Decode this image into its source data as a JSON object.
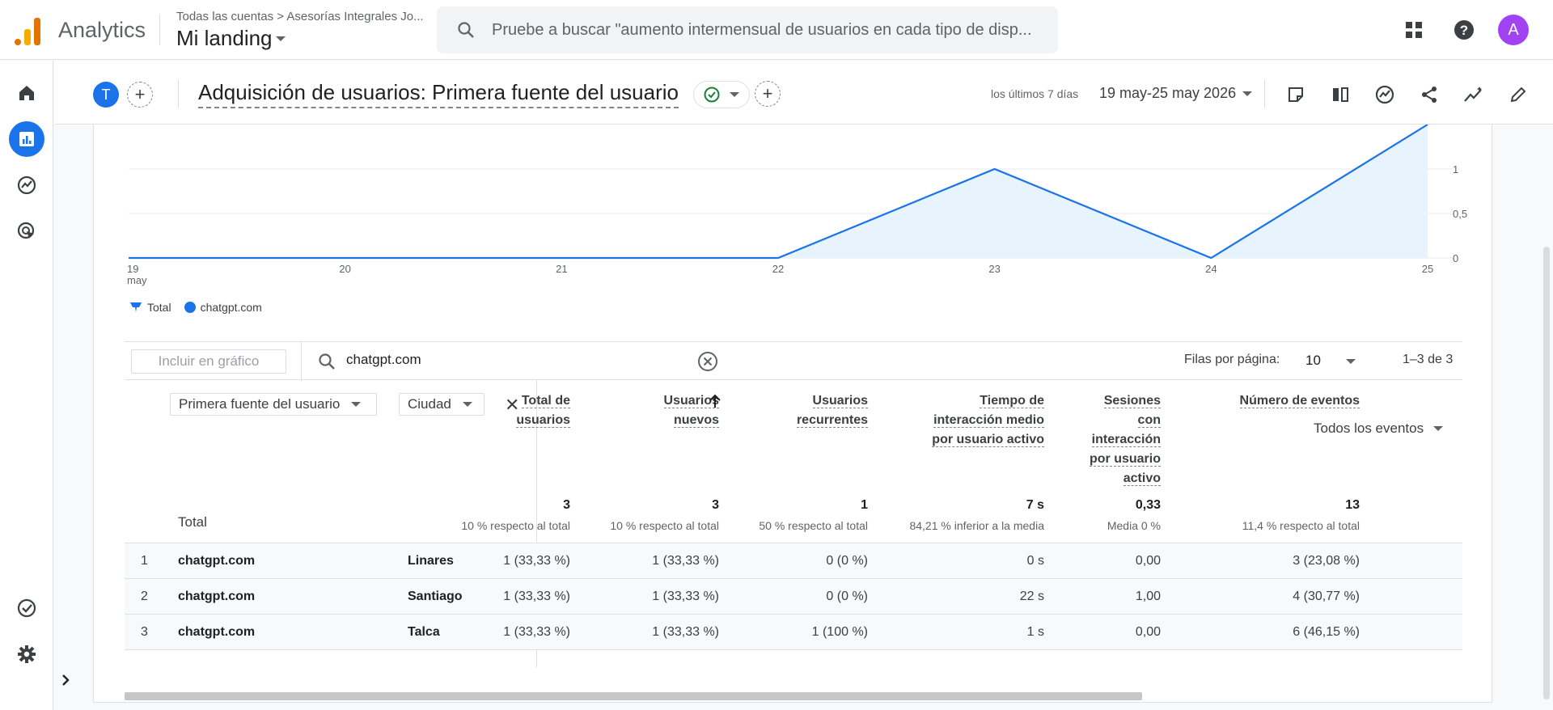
{
  "app": {
    "name": "Analytics",
    "account_path": "Todas las cuentas > Asesorías Integrales Jo...",
    "property": "Mi landing",
    "search_placeholder": "Pruebe a buscar \"aumento intermensual de usuarios en cada tipo de disp...",
    "avatar_letter": "A"
  },
  "header": {
    "segment_letter": "T",
    "title": "Adquisición de usuarios: Primera fuente del usuario",
    "date_label": "los últimos 7 días",
    "date_range": "19 may-25 may 2026"
  },
  "chart_data": {
    "type": "area",
    "x": [
      "19 may",
      "20",
      "21",
      "22",
      "23",
      "24",
      "25"
    ],
    "series": [
      {
        "name": "chatgpt.com",
        "values": [
          0,
          0,
          0,
          0,
          1,
          0,
          1.5
        ]
      }
    ],
    "yticks": [
      "0",
      "0,5",
      "1"
    ],
    "ylim": [
      0,
      1.5
    ],
    "legend": [
      "Total",
      "chatgpt.com"
    ],
    "colors": {
      "line": "#1a73e8",
      "fill": "#e8f4fd"
    }
  },
  "toolbar": {
    "include_label": "Incluir en gráfico",
    "search_value": "chatgpt.com",
    "rows_label": "Filas por página:",
    "rows_value": "10",
    "pager": "1–3 de 3"
  },
  "table": {
    "dimensions": [
      "Primera fuente del usuario",
      "Ciudad"
    ],
    "columns": [
      {
        "label_lines": [
          "Total de",
          "usuarios"
        ]
      },
      {
        "label_lines": [
          "Usuarios",
          "nuevos"
        ]
      },
      {
        "label_lines": [
          "Usuarios",
          "recurrentes"
        ]
      },
      {
        "label_lines": [
          "Tiempo de",
          "interacción medio",
          "por usuario activo"
        ]
      },
      {
        "label_lines": [
          "Sesiones",
          "con",
          "interacción",
          "por usuario",
          "activo"
        ]
      },
      {
        "label_lines": [
          "Número de eventos"
        ]
      }
    ],
    "events_filter": "Todos los eventos",
    "total_label": "Total",
    "totals": [
      {
        "value": "3",
        "sub": "10 % respecto al total"
      },
      {
        "value": "3",
        "sub": "10 % respecto al total"
      },
      {
        "value": "1",
        "sub": "50 % respecto al total"
      },
      {
        "value": "7 s",
        "sub": "84,21 % inferior a la media"
      },
      {
        "value": "0,33",
        "sub": "Media 0 %"
      },
      {
        "value": "13",
        "sub": "11,4 % respecto al total"
      }
    ],
    "rows": [
      {
        "idx": "1",
        "source": "chatgpt.com",
        "city": "Linares",
        "values": [
          "1 (33,33 %)",
          "1 (33,33 %)",
          "0 (0 %)",
          "0 s",
          "0,00",
          "3 (23,08 %)"
        ]
      },
      {
        "idx": "2",
        "source": "chatgpt.com",
        "city": "Santiago",
        "values": [
          "1 (33,33 %)",
          "1 (33,33 %)",
          "0 (0 %)",
          "22 s",
          "1,00",
          "4 (30,77 %)"
        ]
      },
      {
        "idx": "3",
        "source": "chatgpt.com",
        "city": "Talca",
        "values": [
          "1 (33,33 %)",
          "1 (33,33 %)",
          "1 (100 %)",
          "1 s",
          "0,00",
          "6 (46,15 %)"
        ]
      }
    ]
  }
}
